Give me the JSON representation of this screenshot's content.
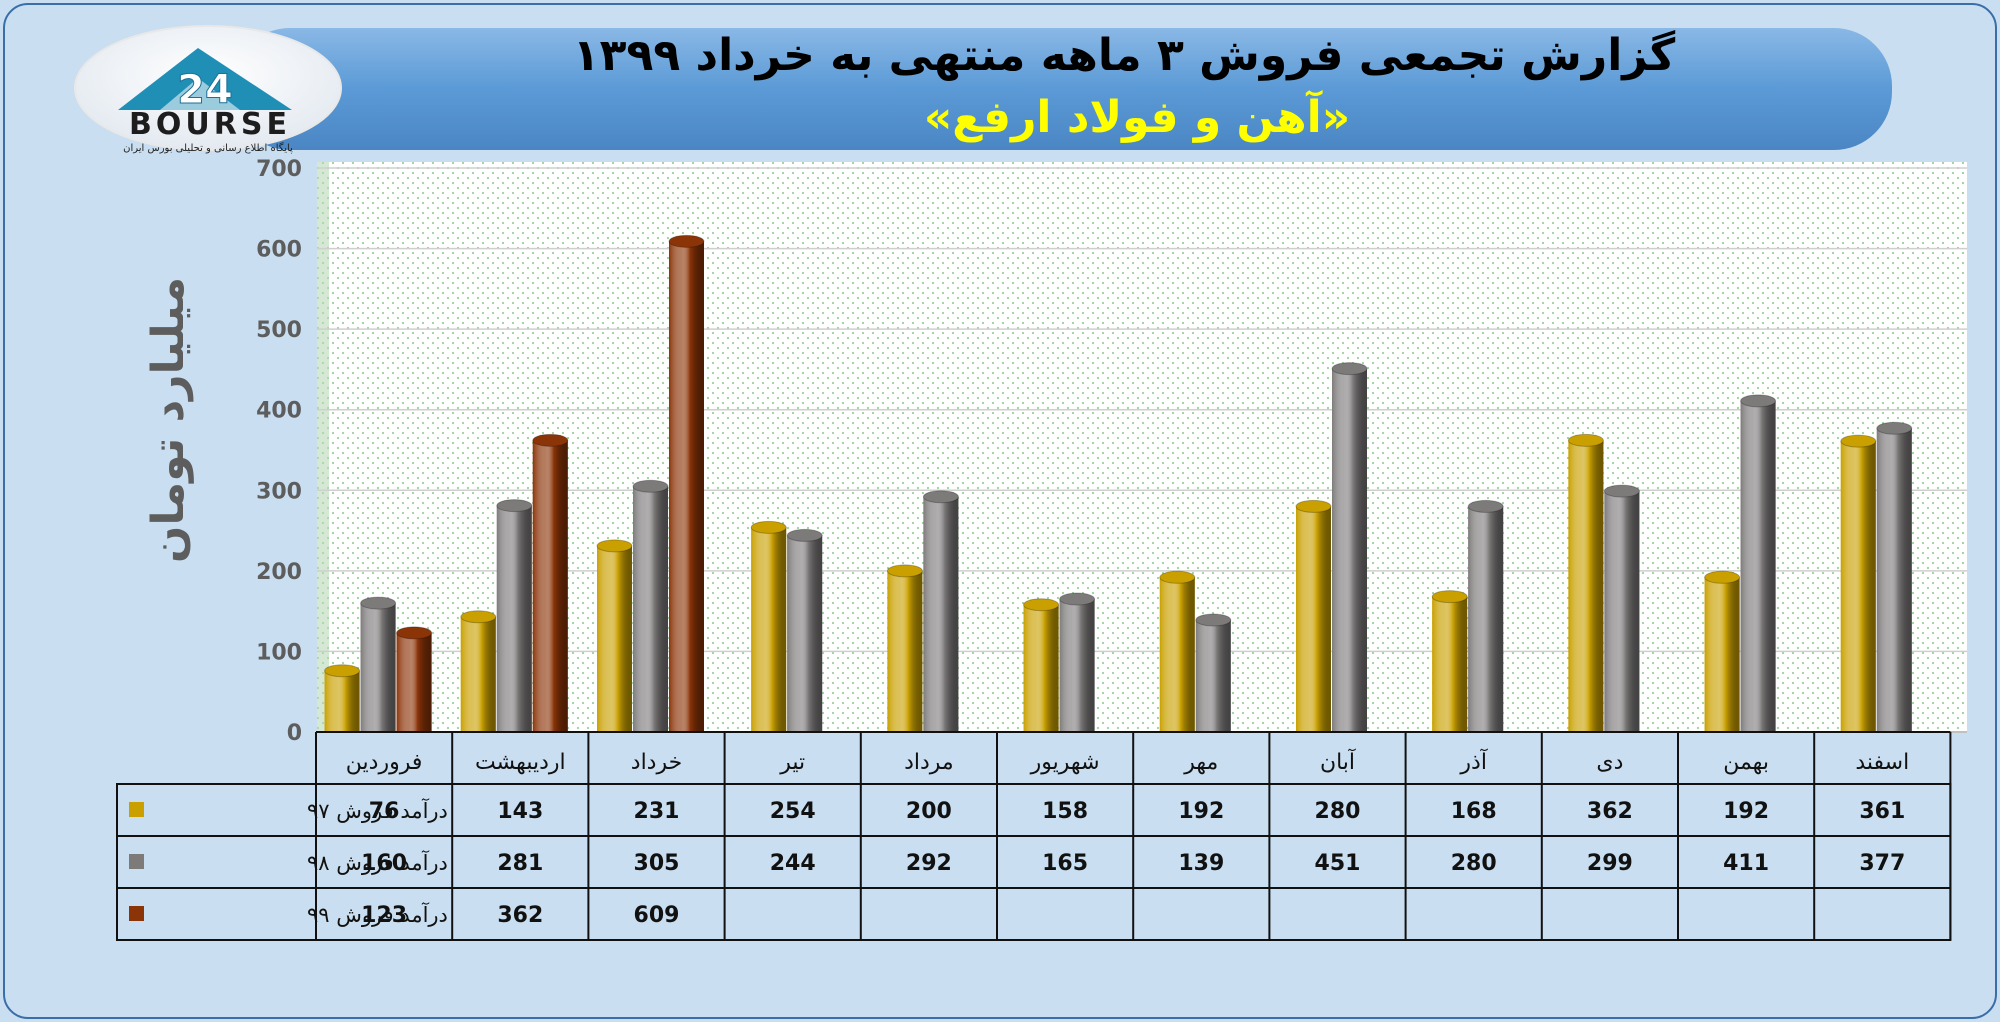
{
  "header": {
    "title": "گزارش تجمعی فروش ۳ ماهه منتهی به خرداد ۱۳۹۹",
    "subtitle": "«آهن و فولاد ارفع»"
  },
  "logo": {
    "brand": "BOURSE",
    "number": "24",
    "tagline": "پایگاه اطلاع رسانی و تحلیلی بورس ایران"
  },
  "colors": {
    "s97": "#c9a000",
    "s98": "#7d7a7a",
    "s99": "#8b3408",
    "header": "#5b9ad6",
    "subtitle": "#ffff00"
  },
  "chart_data": {
    "type": "bar",
    "ylabel": "میلیارد تومان",
    "ylim": [
      0,
      700
    ],
    "yticks": [
      0,
      100,
      200,
      300,
      400,
      500,
      600,
      700
    ],
    "grid": true,
    "categories": [
      "فروردین",
      "اردیبهشت",
      "خرداد",
      "تیر",
      "مرداد",
      "شهریور",
      "مهر",
      "آبان",
      "آذر",
      "دی",
      "بهمن",
      "اسفند"
    ],
    "series": [
      {
        "name": "درآمد فروش ۹۷",
        "color": "#c9a000",
        "values": [
          76,
          143,
          231,
          254,
          200,
          158,
          192,
          280,
          168,
          362,
          192,
          361
        ]
      },
      {
        "name": "درآمد فروش ۹۸",
        "color": "#7d7a7a",
        "values": [
          160,
          281,
          305,
          244,
          292,
          165,
          139,
          451,
          280,
          299,
          411,
          377
        ]
      },
      {
        "name": "درآمد فروش ۹۹",
        "color": "#8b3408",
        "values": [
          123,
          362,
          609,
          null,
          null,
          null,
          null,
          null,
          null,
          null,
          null,
          null
        ]
      }
    ]
  }
}
